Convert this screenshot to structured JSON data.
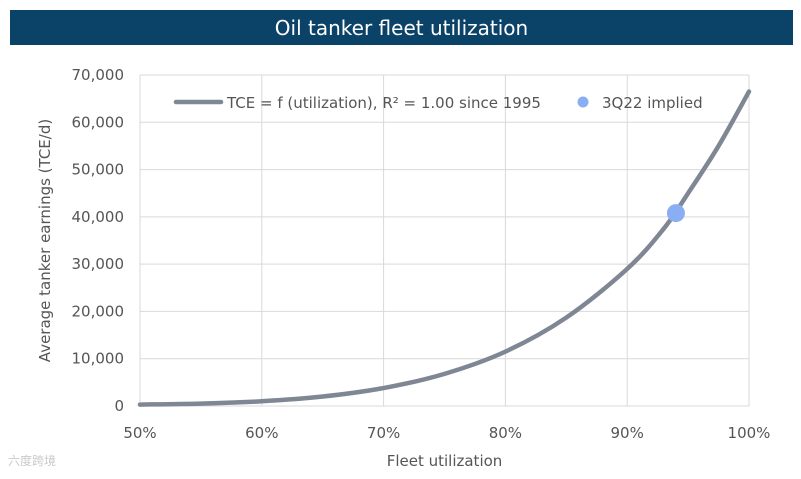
{
  "chart_data": {
    "type": "line",
    "title": "Oil tanker fleet utilization",
    "xlabel": "Fleet utilization",
    "ylabel": "Average tanker earnings (TCE/d)",
    "xlim": [
      50,
      100
    ],
    "ylim": [
      0,
      70000
    ],
    "x_ticks": [
      "50%",
      "60%",
      "70%",
      "80%",
      "90%",
      "100%"
    ],
    "y_ticks": [
      "0",
      "10,000",
      "20,000",
      "30,000",
      "40,000",
      "50,000",
      "60,000",
      "70,000"
    ],
    "grid": true,
    "legend_position": "top",
    "series": [
      {
        "name": "TCE = f (utilization), R² = 1.00 since 1995",
        "style": "line",
        "color": "#7f8795",
        "x": [
          50,
          55,
          60,
          65,
          70,
          75,
          80,
          85,
          90,
          93,
          95,
          97.5,
          100
        ],
        "y": [
          300,
          500,
          1000,
          2000,
          3800,
          6800,
          11500,
          18700,
          29000,
          37500,
          45000,
          55000,
          66500
        ]
      },
      {
        "name": "3Q22 implied",
        "style": "point",
        "color": "#8aaef4",
        "x": [
          94
        ],
        "y": [
          40800
        ]
      }
    ]
  },
  "watermark": "六度跨境"
}
